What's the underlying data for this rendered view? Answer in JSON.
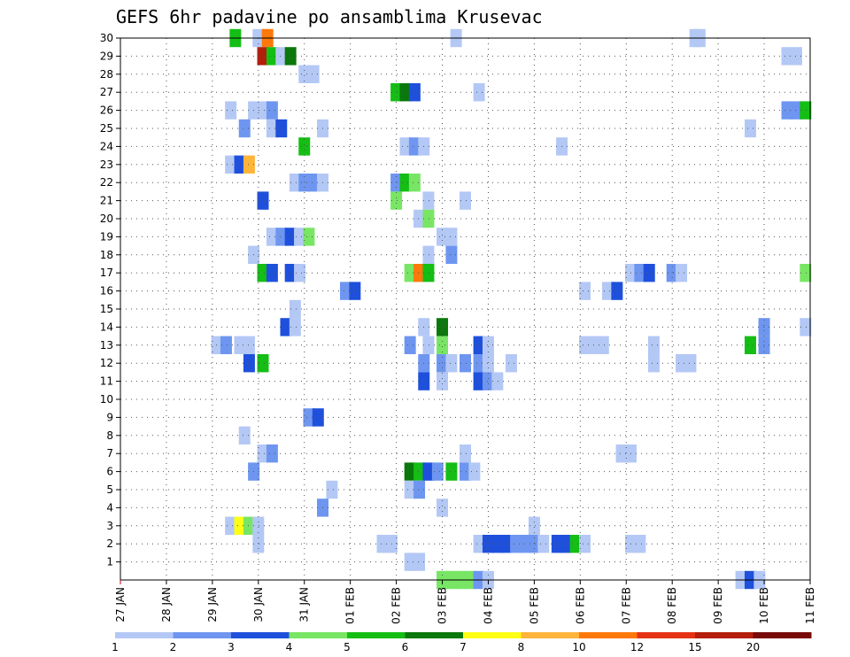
{
  "chart_data": {
    "type": "heatmap",
    "title": "GEFS 6hr padavine po ansamblima Krusevac",
    "xlabel": "",
    "ylabel": "",
    "x_ticks": [
      "27 JAN",
      "28 JAN",
      "29 JAN",
      "30 JAN",
      "31 JAN",
      "01 FEB",
      "02 FEB",
      "03 FEB",
      "04 FEB",
      "05 FEB",
      "06 FEB",
      "07 FEB",
      "08 FEB",
      "09 FEB",
      "10 FEB",
      "11 FEB"
    ],
    "y_ticks": [
      "1",
      "2",
      "3",
      "4",
      "5",
      "6",
      "7",
      "8",
      "9",
      "10",
      "11",
      "12",
      "13",
      "14",
      "15",
      "16",
      "17",
      "18",
      "19",
      "20",
      "21",
      "22",
      "23",
      "24",
      "25",
      "26",
      "27",
      "28",
      "29",
      "30"
    ],
    "xlim_days": [
      0,
      15
    ],
    "ylim_members": [
      0,
      30
    ],
    "step_hours": 6,
    "grid": true,
    "colorbar": {
      "labels": [
        "1",
        "2",
        "3",
        "4",
        "5",
        "6",
        "7",
        "8",
        "10",
        "12",
        "15",
        "20"
      ],
      "colors": [
        "#b4c8f5",
        "#6e96f0",
        "#1e50dc",
        "#78e664",
        "#14be14",
        "#0a780a",
        "#ffff14",
        "#ffb43c",
        "#ff780a",
        "#e63214",
        "#b41e0a",
        "#780a0a"
      ]
    },
    "cells": [
      [
        2.5,
        30,
        5
      ],
      [
        3.0,
        30,
        1
      ],
      [
        3.2,
        30,
        9
      ],
      [
        7.3,
        30,
        1
      ],
      [
        12.5,
        30,
        1
      ],
      [
        12.6,
        30,
        1
      ],
      [
        3.1,
        29,
        11
      ],
      [
        3.3,
        29,
        5
      ],
      [
        3.5,
        29,
        1
      ],
      [
        3.7,
        29,
        6
      ],
      [
        14.5,
        29,
        1
      ],
      [
        14.7,
        29,
        1
      ],
      [
        4.0,
        28,
        1
      ],
      [
        4.2,
        28,
        1
      ],
      [
        6.0,
        27,
        5
      ],
      [
        6.2,
        27,
        6
      ],
      [
        6.4,
        27,
        3
      ],
      [
        7.8,
        27,
        1
      ],
      [
        2.4,
        26,
        1
      ],
      [
        2.9,
        26,
        1
      ],
      [
        3.1,
        26,
        1
      ],
      [
        3.3,
        26,
        2
      ],
      [
        14.5,
        26,
        2
      ],
      [
        14.7,
        26,
        2
      ],
      [
        14.9,
        26,
        5
      ],
      [
        2.7,
        25,
        2
      ],
      [
        3.3,
        25,
        1
      ],
      [
        3.5,
        25,
        3
      ],
      [
        4.4,
        25,
        1
      ],
      [
        13.7,
        25,
        1
      ],
      [
        4.0,
        24,
        5
      ],
      [
        6.2,
        24,
        1
      ],
      [
        6.4,
        24,
        2
      ],
      [
        6.6,
        24,
        1
      ],
      [
        9.6,
        24,
        1
      ],
      [
        2.4,
        23,
        1
      ],
      [
        2.6,
        23,
        3
      ],
      [
        2.8,
        23,
        8
      ],
      [
        3.8,
        22,
        1
      ],
      [
        4.0,
        22,
        2
      ],
      [
        4.2,
        22,
        2
      ],
      [
        4.4,
        22,
        1
      ],
      [
        6.0,
        22,
        2
      ],
      [
        6.2,
        22,
        5
      ],
      [
        6.4,
        22,
        4
      ],
      [
        3.1,
        21,
        3
      ],
      [
        6.0,
        21,
        4
      ],
      [
        6.7,
        21,
        1
      ],
      [
        7.5,
        21,
        1
      ],
      [
        6.5,
        20,
        1
      ],
      [
        6.7,
        20,
        4
      ],
      [
        3.3,
        19,
        1
      ],
      [
        3.5,
        19,
        2
      ],
      [
        3.7,
        19,
        3
      ],
      [
        3.9,
        19,
        1
      ],
      [
        4.1,
        19,
        4
      ],
      [
        7.0,
        19,
        1
      ],
      [
        7.2,
        19,
        1
      ],
      [
        2.9,
        18,
        1
      ],
      [
        6.7,
        18,
        1
      ],
      [
        7.2,
        18,
        2
      ],
      [
        3.1,
        17,
        5
      ],
      [
        3.3,
        17,
        3
      ],
      [
        3.7,
        17,
        3
      ],
      [
        3.9,
        17,
        1
      ],
      [
        6.3,
        17,
        4
      ],
      [
        6.5,
        17,
        9
      ],
      [
        6.7,
        17,
        5
      ],
      [
        11.1,
        17,
        1
      ],
      [
        11.3,
        17,
        2
      ],
      [
        11.5,
        17,
        3
      ],
      [
        12.0,
        17,
        2
      ],
      [
        12.2,
        17,
        1
      ],
      [
        14.9,
        17,
        4
      ],
      [
        4.9,
        16,
        2
      ],
      [
        5.1,
        16,
        3
      ],
      [
        10.1,
        16,
        1
      ],
      [
        10.6,
        16,
        1
      ],
      [
        10.8,
        16,
        3
      ],
      [
        3.8,
        15,
        1
      ],
      [
        3.6,
        14,
        3
      ],
      [
        3.8,
        14,
        1
      ],
      [
        6.6,
        14,
        1
      ],
      [
        7.0,
        14,
        6
      ],
      [
        14.0,
        14,
        2
      ],
      [
        14.9,
        14,
        1
      ],
      [
        2.1,
        13,
        1
      ],
      [
        2.3,
        13,
        2
      ],
      [
        2.6,
        13,
        1
      ],
      [
        2.8,
        13,
        1
      ],
      [
        6.3,
        13,
        2
      ],
      [
        6.7,
        13,
        1
      ],
      [
        7.0,
        13,
        4
      ],
      [
        7.8,
        13,
        3
      ],
      [
        8.0,
        13,
        1
      ],
      [
        10.1,
        13,
        1
      ],
      [
        10.3,
        13,
        1
      ],
      [
        10.5,
        13,
        1
      ],
      [
        11.6,
        13,
        1
      ],
      [
        13.7,
        13,
        5
      ],
      [
        14.0,
        13,
        2
      ],
      [
        2.8,
        12,
        3
      ],
      [
        3.1,
        12,
        5
      ],
      [
        6.6,
        12,
        2
      ],
      [
        7.0,
        12,
        2
      ],
      [
        7.2,
        12,
        1
      ],
      [
        7.5,
        12,
        2
      ],
      [
        7.8,
        12,
        2
      ],
      [
        8.0,
        12,
        1
      ],
      [
        8.5,
        12,
        1
      ],
      [
        11.6,
        12,
        1
      ],
      [
        12.2,
        12,
        1
      ],
      [
        12.4,
        12,
        1
      ],
      [
        6.6,
        11,
        3
      ],
      [
        7.0,
        11,
        1
      ],
      [
        7.8,
        11,
        3
      ],
      [
        8.0,
        11,
        2
      ],
      [
        8.2,
        11,
        1
      ],
      [
        4.1,
        9,
        2
      ],
      [
        4.3,
        9,
        3
      ],
      [
        2.7,
        8,
        1
      ],
      [
        3.1,
        7,
        1
      ],
      [
        3.3,
        7,
        2
      ],
      [
        7.5,
        7,
        1
      ],
      [
        10.9,
        7,
        1
      ],
      [
        11.1,
        7,
        1
      ],
      [
        2.9,
        6,
        2
      ],
      [
        6.3,
        6,
        6
      ],
      [
        6.5,
        6,
        5
      ],
      [
        6.7,
        6,
        3
      ],
      [
        6.9,
        6,
        2
      ],
      [
        7.2,
        6,
        5
      ],
      [
        7.5,
        6,
        2
      ],
      [
        7.7,
        6,
        1
      ],
      [
        4.6,
        5,
        1
      ],
      [
        6.3,
        5,
        1
      ],
      [
        6.5,
        5,
        2
      ],
      [
        4.4,
        4,
        2
      ],
      [
        7.0,
        4,
        1
      ],
      [
        2.4,
        3,
        1
      ],
      [
        2.6,
        3,
        7
      ],
      [
        2.8,
        3,
        4
      ],
      [
        3.0,
        3,
        1
      ],
      [
        9.0,
        3,
        1
      ],
      [
        3.0,
        2,
        1
      ],
      [
        5.7,
        2,
        1
      ],
      [
        5.9,
        2,
        1
      ],
      [
        7.8,
        2,
        1
      ],
      [
        8.0,
        2,
        3
      ],
      [
        8.2,
        2,
        3
      ],
      [
        8.4,
        2,
        3
      ],
      [
        8.6,
        2,
        2
      ],
      [
        8.8,
        2,
        2
      ],
      [
        9.0,
        2,
        2
      ],
      [
        9.2,
        2,
        1
      ],
      [
        9.5,
        2,
        3
      ],
      [
        9.7,
        2,
        3
      ],
      [
        9.9,
        2,
        5
      ],
      [
        10.1,
        2,
        1
      ],
      [
        11.1,
        2,
        1
      ],
      [
        11.3,
        2,
        1
      ],
      [
        6.3,
        1,
        1
      ],
      [
        6.5,
        1,
        1
      ],
      [
        7.0,
        0,
        4
      ],
      [
        7.2,
        0,
        4
      ],
      [
        7.4,
        0,
        4
      ],
      [
        7.6,
        0,
        4
      ],
      [
        7.8,
        0,
        2
      ],
      [
        8.0,
        0,
        1
      ],
      [
        13.5,
        0,
        1
      ],
      [
        13.7,
        0,
        3
      ],
      [
        13.9,
        0,
        1
      ]
    ]
  }
}
